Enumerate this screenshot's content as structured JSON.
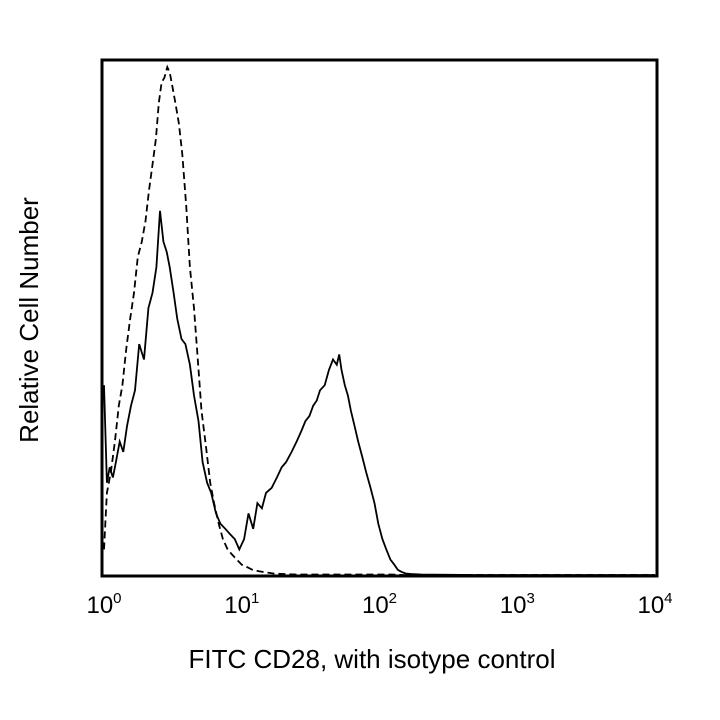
{
  "chart_data": {
    "type": "line",
    "title": "",
    "xlabel": "FITC CD28, with isotype control",
    "ylabel": "Relative Cell Number",
    "x_scale": "log",
    "xlim": [
      1,
      10000
    ],
    "ylim": [
      0,
      100
    ],
    "y_ticks_shown": false,
    "grid": false,
    "x_tick_labels": [
      {
        "base": "10",
        "exp": "0",
        "value": 1
      },
      {
        "base": "10",
        "exp": "1",
        "value": 10
      },
      {
        "base": "10",
        "exp": "2",
        "value": 100
      },
      {
        "base": "10",
        "exp": "3",
        "value": 1000
      },
      {
        "base": "10",
        "exp": "4",
        "value": 10000
      }
    ],
    "series": [
      {
        "line_style": "solid",
        "color": "#000000",
        "x": [
          1.0,
          1.05,
          1.1,
          1.16,
          1.22,
          1.3,
          1.38,
          1.47,
          1.57,
          1.68,
          1.8,
          1.95,
          2.1,
          2.25,
          2.4,
          2.55,
          2.7,
          2.85,
          3.0,
          3.2,
          3.4,
          3.65,
          3.9,
          4.2,
          4.5,
          4.85,
          5.2,
          5.6,
          6.0,
          6.5,
          7.0,
          7.6,
          8.2,
          8.9,
          9.6,
          10.4,
          11.2,
          12.1,
          13.0,
          14.0,
          15.0,
          16.5,
          18.0,
          19.5,
          21.0,
          23.0,
          25.0,
          27.0,
          29.0,
          31.0,
          33.0,
          35.0,
          37.0,
          40.0,
          43.0,
          46.0,
          49.0,
          51.0,
          53.0,
          56.0,
          59.0,
          62.0,
          66.0,
          70.0,
          75.0,
          80.0,
          86.0,
          92.0,
          98.0,
          105.0,
          112.0,
          120.0,
          128.0,
          136.0,
          145.0,
          155.0,
          170.0,
          200.0,
          500.0,
          10000.0
        ],
        "y": [
          37.0,
          18.0,
          21.0,
          19.0,
          22.0,
          26.0,
          24.0,
          29.0,
          33.0,
          36.0,
          45.0,
          42.0,
          52.0,
          55.0,
          60.0,
          71.0,
          65.0,
          63.0,
          60.0,
          55.0,
          50.0,
          46.0,
          45.0,
          41.0,
          35.0,
          30.0,
          22.0,
          18.0,
          16.0,
          12.0,
          10.0,
          9.0,
          8.0,
          7.0,
          5.0,
          7.0,
          12.0,
          9.0,
          14.0,
          13.0,
          16.0,
          17.0,
          19.0,
          21.0,
          22.0,
          24.0,
          26.0,
          28.0,
          30.0,
          31.0,
          33.0,
          34.0,
          36.0,
          37.0,
          40.0,
          42.0,
          41.0,
          43.0,
          40.0,
          37.0,
          35.0,
          32.0,
          29.0,
          26.0,
          23.0,
          20.0,
          17.0,
          14.0,
          10.0,
          7.0,
          5.0,
          3.0,
          2.0,
          1.0,
          0.6,
          0.3,
          0.2,
          0.1,
          0.0,
          0.0
        ]
      },
      {
        "line_style": "dashed",
        "color": "#000000",
        "x": [
          1.0,
          1.05,
          1.12,
          1.2,
          1.28,
          1.36,
          1.45,
          1.55,
          1.65,
          1.76,
          1.88,
          2.0,
          2.12,
          2.25,
          2.38,
          2.5,
          2.62,
          2.75,
          2.88,
          3.0,
          3.15,
          3.3,
          3.5,
          3.7,
          3.95,
          4.2,
          4.5,
          4.8,
          5.1,
          5.5,
          5.9,
          6.3,
          6.8,
          7.3,
          7.9,
          8.5,
          9.2,
          10.0,
          11.0,
          12.0,
          13.5,
          15.0,
          17.0,
          20.0,
          25.0,
          40.0,
          80.0,
          120.0,
          150.0,
          1000.0,
          10000.0
        ],
        "y": [
          5.0,
          16.0,
          20.0,
          26.0,
          33.0,
          37.0,
          44.0,
          50.0,
          55.0,
          62.0,
          65.0,
          69.0,
          75.0,
          80.0,
          85.0,
          92.0,
          96.0,
          97.0,
          99.0,
          98.0,
          95.0,
          92.0,
          88.0,
          82.0,
          72.0,
          60.0,
          52.0,
          42.0,
          32.0,
          25.0,
          18.0,
          14.0,
          10.0,
          7.0,
          5.0,
          4.0,
          3.0,
          2.0,
          1.5,
          1.0,
          0.7,
          0.5,
          0.3,
          0.2,
          0.1,
          0.1,
          0.1,
          0.1,
          0.0,
          0.0,
          0.0
        ]
      }
    ]
  }
}
